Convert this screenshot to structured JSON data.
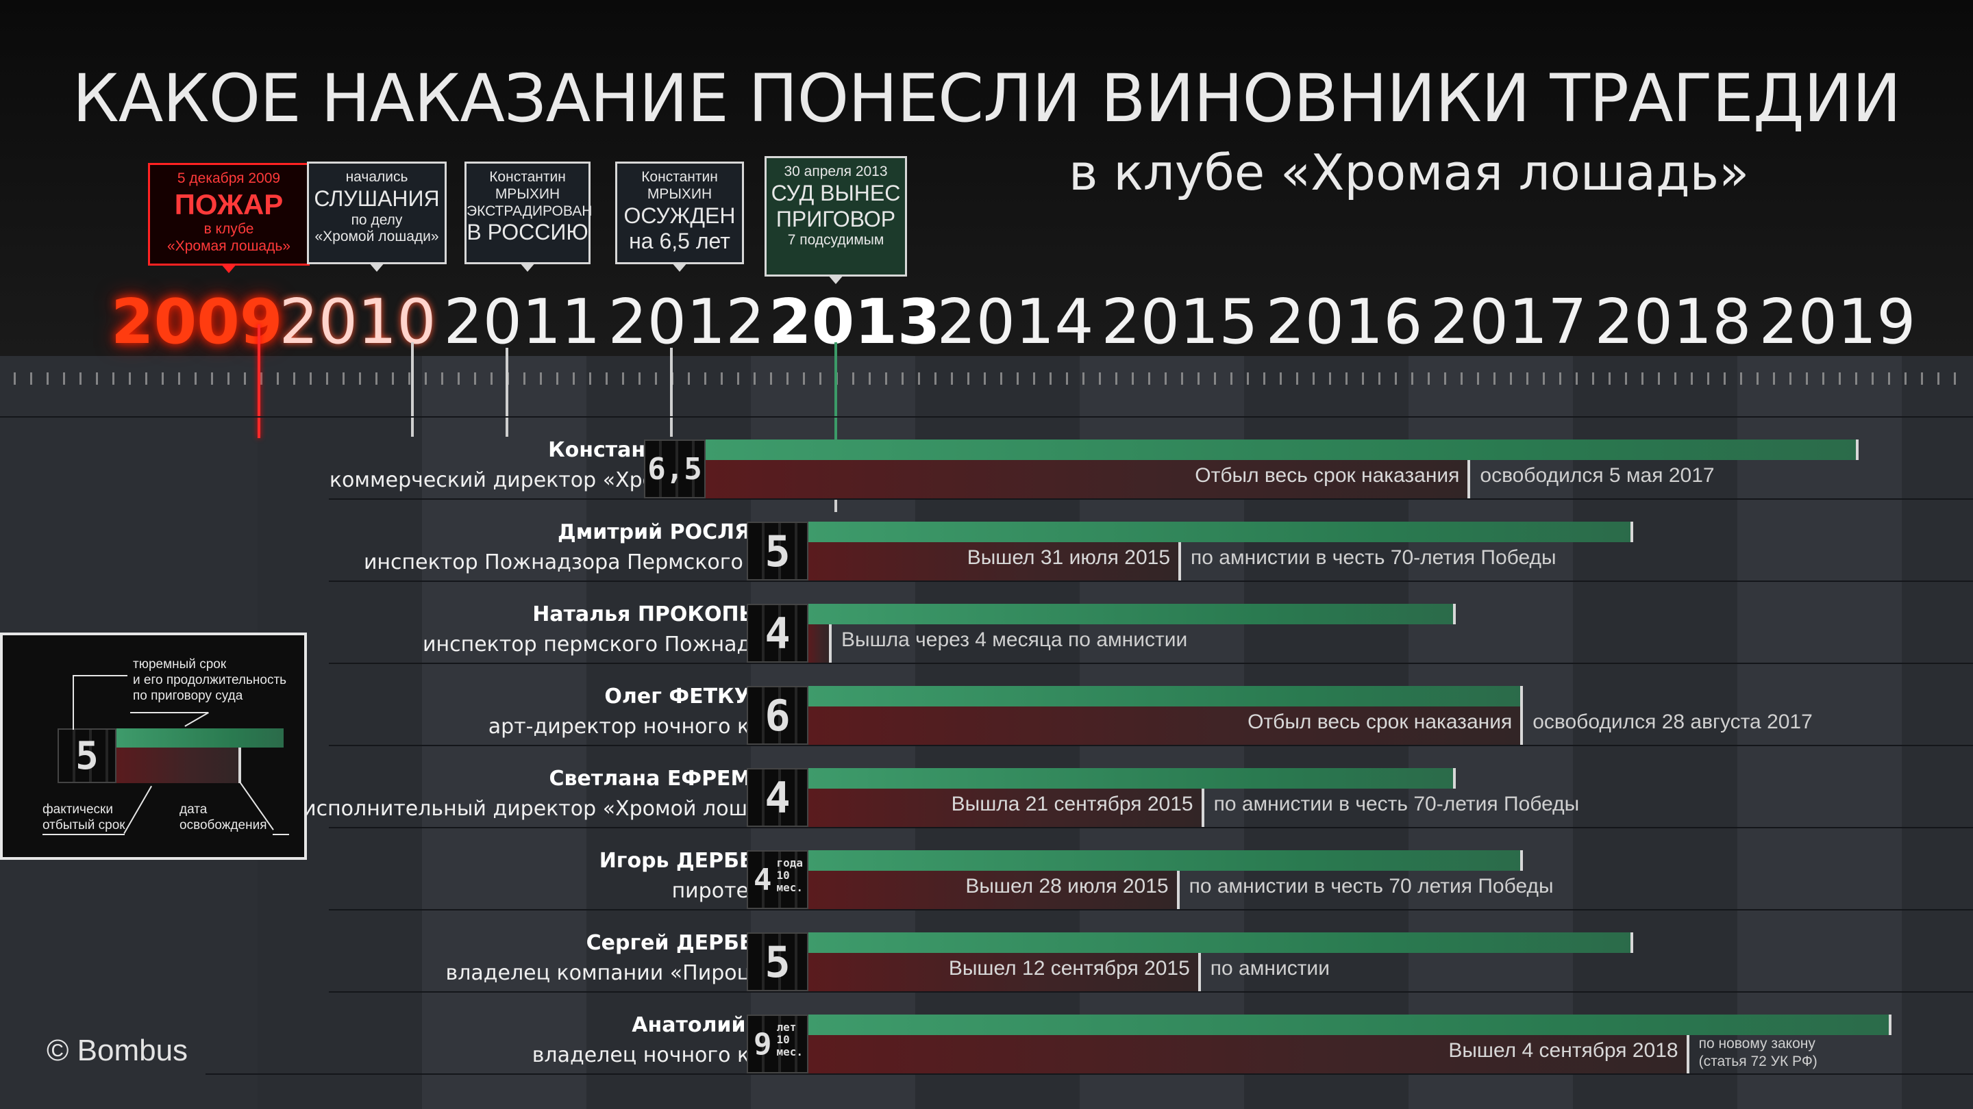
{
  "title": "КАКОЕ НАКАЗАНИЕ ПОНЕСЛИ ВИНОВНИКИ ТРАГЕДИИ",
  "subtitle": "в клубе «Хромая лошадь»",
  "events": [
    {
      "small_top": "5 декабря 2009",
      "big": "ПОЖАР",
      "small_bottom": "в клубе\n«Хромая лошадь»"
    },
    {
      "small_top": "начались",
      "big": "СЛУШАНИЯ",
      "small_bottom": "по делу\n«Хромой лошади»"
    },
    {
      "small_top": "Константин\nМРЫХИН\nЭКСТРАДИРОВАН",
      "big": "В РОССИЮ",
      "small_bottom": ""
    },
    {
      "small_top": "Константин\nМРЫХИН",
      "big": "ОСУЖДЕН\nна 6,5 лет",
      "small_bottom": ""
    },
    {
      "small_top": "30 апреля 2013",
      "big": "СУД ВЫНЕС\nПРИГОВОР",
      "small_bottom": "7 подсудимым"
    }
  ],
  "years": [
    "2009",
    "2010",
    "2011",
    "2012",
    "2013",
    "2014",
    "2015",
    "2016",
    "2017",
    "2018",
    "2019"
  ],
  "people": [
    {
      "name": "Константин МРЫХИН",
      "role": "коммерческий директор «Хромой лошади»",
      "badge": "6,5",
      "badge_sub": "",
      "sentence_end": 2019.7,
      "served_end": 2017.34,
      "start": 2012.55,
      "served_text": "Отбыл весь срок наказания",
      "note": "освободился 5 мая 2017"
    },
    {
      "name": "Дмитрий РОСЛЯКОВ",
      "role": "инспектор Пожнадзора Пермского края",
      "badge": "5",
      "badge_sub": "",
      "sentence_end": 2018.33,
      "served_end": 2015.58,
      "start": 2013.33,
      "served_text": "Вышел 31 июля 2015",
      "note": "по амнистии в честь 70-летия Победы"
    },
    {
      "name": "Наталья ПРОКОПЬЕВА",
      "role": "инспектор пермского Пожнадзора",
      "badge": "4",
      "badge_sub": "",
      "sentence_end": 2017.25,
      "served_end": 2013.5,
      "start": 2013.33,
      "served_text": "",
      "note": "Вышла через 4 месяца по амнистии"
    },
    {
      "name": "Олег ФЕТКУЛОВ",
      "role": "арт-директор ночного клуба",
      "badge": "6",
      "badge_sub": "",
      "sentence_end": 2017.66,
      "served_end": 2017.66,
      "start": 2013.33,
      "served_text": "Отбыл весь срок наказания",
      "note": "освободился 28 августа 2017"
    },
    {
      "name": "Светлана ЕФРЕМОВА",
      "role": "исполнительный директор «Хромой лошади»",
      "badge": "4",
      "badge_sub": "",
      "sentence_end": 2017.25,
      "served_end": 2015.72,
      "start": 2013.33,
      "served_text": "Вышла 21 сентября 2015",
      "note": "по амнистии в честь 70-летия Победы"
    },
    {
      "name": "Игорь ДЕРБЕНЕВ",
      "role": "пиротехник",
      "badge": "4",
      "badge_sub": "года\n10\nмес.",
      "sentence_end": 2017.66,
      "served_end": 2015.57,
      "start": 2013.33,
      "served_text": "Вышел 28 июля 2015",
      "note": "по амнистии в честь 70 летия Победы"
    },
    {
      "name": "Сергей ДЕРБЕНЕВ",
      "role": "владелец компании «Пироцвет»",
      "badge": "5",
      "badge_sub": "",
      "sentence_end": 2018.33,
      "served_end": 2015.7,
      "start": 2013.33,
      "served_text": "Вышел 12 сентября 2015",
      "note": "по амнистии"
    },
    {
      "name": "Анатолий ЗАК",
      "role": "владелец ночного клуба",
      "badge": "9",
      "badge_sub": "лет\n10\nмес.",
      "sentence_end": 2019.9,
      "served_end": 2018.67,
      "start": 2013.33,
      "served_text": "Вышел 4 сентября 2018",
      "note": "по новому закону\n(статья 72 УК РФ)"
    }
  ],
  "legend": {
    "term": "тюремный срок\nи его продолжительность\nпо приговору суда",
    "served": "фактически\nотбытый срок",
    "release": "дата\nосвобождения",
    "badge": "5"
  },
  "copyright": "© Bombus",
  "colors": {
    "term_bar": "#3e9b6b",
    "served_bar": "#5a1b1e",
    "fire": "#ff2222"
  }
}
